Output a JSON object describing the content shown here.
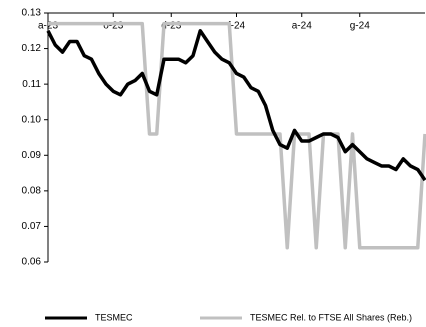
{
  "chart_data": {
    "type": "line",
    "categories": [
      "a-23",
      null,
      null,
      null,
      null,
      null,
      null,
      null,
      null,
      "o-23",
      null,
      null,
      null,
      null,
      null,
      null,
      null,
      "d-23",
      null,
      null,
      null,
      null,
      null,
      null,
      null,
      null,
      "f-24",
      null,
      null,
      null,
      null,
      null,
      null,
      null,
      null,
      "a-24",
      null,
      null,
      null,
      null,
      null,
      null,
      null,
      "g-24",
      null,
      null,
      null,
      null,
      null,
      null,
      null,
      null,
      null
    ],
    "series": [
      {
        "name": "TESMEC",
        "color": "#000000",
        "values": [
          0.125,
          0.121,
          0.119,
          0.122,
          0.122,
          0.118,
          0.117,
          0.113,
          0.11,
          0.108,
          0.107,
          0.11,
          0.111,
          0.113,
          0.108,
          0.107,
          0.117,
          0.117,
          0.117,
          0.116,
          0.118,
          0.125,
          0.122,
          0.119,
          0.117,
          0.116,
          0.113,
          0.112,
          0.109,
          0.108,
          0.104,
          0.097,
          0.093,
          0.092,
          0.097,
          0.094,
          0.094,
          0.095,
          0.096,
          0.096,
          0.095,
          0.091,
          0.093,
          0.091,
          0.089,
          0.088,
          0.087,
          0.087,
          0.086,
          0.089,
          0.087,
          0.086,
          0.083
        ]
      },
      {
        "name": "TESMEC Rel. to FTSE All Shares (Reb.)",
        "color": "#c0c0c0",
        "values": [
          0.127,
          0.127,
          0.127,
          0.127,
          0.127,
          0.127,
          0.127,
          0.127,
          0.127,
          0.127,
          0.127,
          0.127,
          0.127,
          0.127,
          0.096,
          0.096,
          0.127,
          0.127,
          0.127,
          0.127,
          0.127,
          0.127,
          0.127,
          0.127,
          0.127,
          0.127,
          0.096,
          0.096,
          0.096,
          0.096,
          0.096,
          0.096,
          0.096,
          0.064,
          0.096,
          0.096,
          0.096,
          0.064,
          0.096,
          0.096,
          0.096,
          0.064,
          0.096,
          0.064,
          0.064,
          0.064,
          0.064,
          0.064,
          0.064,
          0.064,
          0.064,
          0.064,
          0.096
        ]
      }
    ],
    "ylim": [
      0.06,
      0.13
    ],
    "yticks": [
      {
        "value": 0.06,
        "label": "0.06"
      },
      {
        "value": 0.07,
        "label": "0.07"
      },
      {
        "value": 0.08,
        "label": "0.08"
      },
      {
        "value": 0.09,
        "label": "0.09"
      },
      {
        "value": 0.1,
        "label": "0.10"
      },
      {
        "value": 0.11,
        "label": "0.11"
      },
      {
        "value": 0.12,
        "label": "0.12"
      },
      {
        "value": 0.13,
        "label": "0.13"
      }
    ],
    "grid": false,
    "legend": "bottom"
  }
}
